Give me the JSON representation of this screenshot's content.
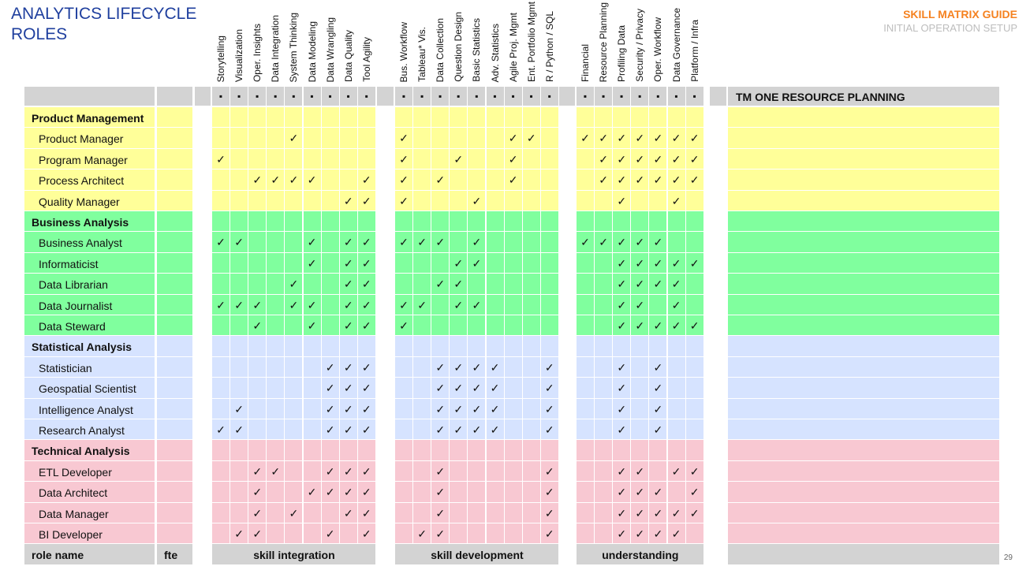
{
  "header": {
    "title": "ANALYTICS LIFECYCLE ROLES",
    "guide_title": "SKILL MATRIX GUIDE",
    "guide_subtitle": "INITIAL OPERATION SETUP",
    "page_number": "29"
  },
  "colors": {
    "product": "#ffff99",
    "business": "#80ff9e",
    "statistical": "#d6e3ff",
    "technical": "#f8c8d2",
    "header_bar": "#d3d3d3",
    "title": "#1f3f9e",
    "accent": "#f58220"
  },
  "groups": [
    {
      "name": "skill integration",
      "columns": [
        "Storytelling",
        "Visualization",
        "Oper. Insights",
        "Data Integration",
        "System Thinking",
        "Data Modeling",
        "Data Wrangling",
        "Data Quality",
        "Tool Agility"
      ]
    },
    {
      "name": "skill development",
      "columns": [
        "Bus. Workflow",
        "Tableau* Vis.",
        "Data Collection",
        "Question Design",
        "Basic Statistics",
        "Adv. Statistics",
        "Agile Proj. Mgmt",
        "Ent. Portfolio Mgmt",
        "R / Python / SQL"
      ]
    },
    {
      "name": "understanding",
      "columns": [
        "Financial",
        "Resource Planning",
        "Profiling Data",
        "Security / Privacy",
        "Oper. Workflow",
        "Data Governance",
        "Platform / Infra"
      ]
    }
  ],
  "header_marker": "▪",
  "check_mark": "✓",
  "tm_header": "TM ONE RESOURCE PLANNING",
  "footer": {
    "role_label": "role name",
    "fte_label": "fte"
  },
  "categories": [
    {
      "name": "Product Management",
      "color_key": "product",
      "roles": [
        {
          "name": "Product Manager",
          "checks": [
            "000010000",
            "100000110",
            "1111111"
          ]
        },
        {
          "name": "Program Manager",
          "checks": [
            "100000000",
            "100100100",
            "0111111"
          ]
        },
        {
          "name": "Process Architect",
          "checks": [
            "001111001",
            "101000100",
            "0111111"
          ]
        },
        {
          "name": "Quality Manager",
          "checks": [
            "000000011",
            "100010000",
            "0010010"
          ]
        }
      ]
    },
    {
      "name": "Business Analysis",
      "color_key": "business",
      "roles": [
        {
          "name": "Business Analyst",
          "checks": [
            "110001011",
            "111010000",
            "1111100"
          ]
        },
        {
          "name": "Informaticist",
          "checks": [
            "000001011",
            "000110000",
            "0011111"
          ]
        },
        {
          "name": "Data Librarian",
          "checks": [
            "000010011",
            "001100000",
            "0011110"
          ]
        },
        {
          "name": "Data Journalist",
          "checks": [
            "111011011",
            "110110000",
            "0011010"
          ]
        },
        {
          "name": "Data Steward",
          "checks": [
            "001001011",
            "100000000",
            "0011111"
          ]
        }
      ]
    },
    {
      "name": "Statistical Analysis",
      "color_key": "statistical",
      "roles": [
        {
          "name": "Statistician",
          "checks": [
            "000000111",
            "001111001",
            "0010100"
          ]
        },
        {
          "name": "Geospatial Scientist",
          "checks": [
            "000000111",
            "001111001",
            "0010100"
          ]
        },
        {
          "name": "Intelligence Analyst",
          "checks": [
            "010000111",
            "001111001",
            "0010100"
          ]
        },
        {
          "name": "Research Analyst",
          "checks": [
            "110000111",
            "001111001",
            "0010100"
          ]
        }
      ]
    },
    {
      "name": "Technical Analysis",
      "color_key": "technical",
      "roles": [
        {
          "name": "ETL Developer",
          "checks": [
            "001100111",
            "001000001",
            "0011011"
          ]
        },
        {
          "name": "Data Architect",
          "checks": [
            "001001111",
            "001000001",
            "0011101"
          ]
        },
        {
          "name": "Data Manager",
          "checks": [
            "001010011",
            "001000001",
            "0011111"
          ]
        },
        {
          "name": "BI Developer",
          "checks": [
            "011000101",
            "011000001",
            "0011110"
          ]
        }
      ]
    }
  ]
}
